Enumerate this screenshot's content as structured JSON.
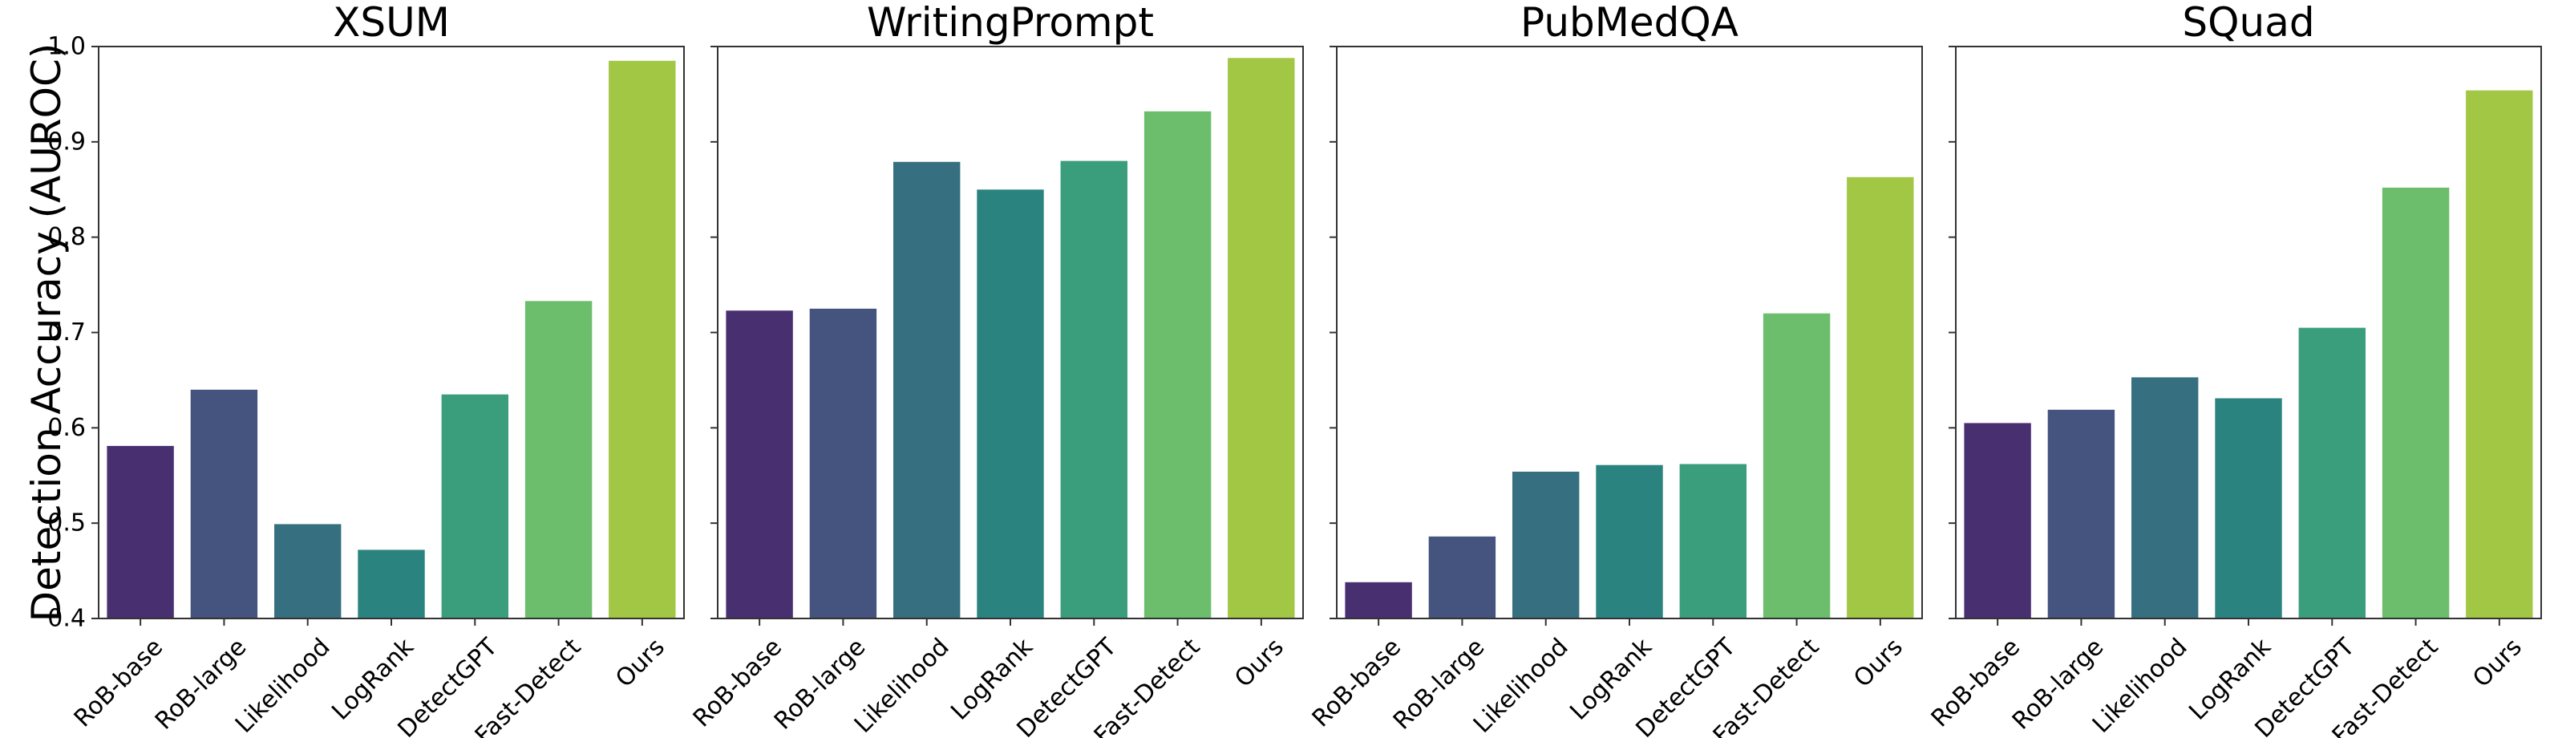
{
  "chart_data": {
    "type": "bar",
    "ylabel": "Detection Accuracy (AUROC)",
    "ylim": [
      0.4,
      1.0
    ],
    "yticks": [
      "0.4",
      "0.5",
      "0.6",
      "0.7",
      "0.8",
      "0.9",
      "1.0"
    ],
    "categories": [
      "RoB-base",
      "RoB-large",
      "Likelihood",
      "LogRank",
      "DetectGPT",
      "Fast-Detect",
      "Ours"
    ],
    "colors": [
      "#482f70",
      "#44547f",
      "#366f80",
      "#2b8380",
      "#3a9e7c",
      "#6cbd6c",
      "#a2c745"
    ],
    "grid": false,
    "legend": "none",
    "panels": [
      {
        "title": "XSUM",
        "values": [
          0.581,
          0.64,
          0.499,
          0.472,
          0.635,
          0.733,
          0.985
        ]
      },
      {
        "title": "WritingPrompt",
        "values": [
          0.723,
          0.725,
          0.879,
          0.85,
          0.88,
          0.932,
          0.988
        ]
      },
      {
        "title": "PubMedQA",
        "values": [
          0.438,
          0.486,
          0.554,
          0.561,
          0.562,
          0.72,
          0.863
        ]
      },
      {
        "title": "SQuad",
        "values": [
          0.605,
          0.619,
          0.653,
          0.631,
          0.705,
          0.852,
          0.954
        ]
      }
    ]
  }
}
